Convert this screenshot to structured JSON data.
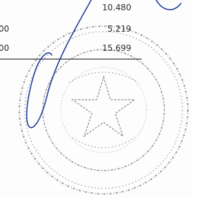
{
  "rows": [
    {
      "amount": "10.480"
    },
    {
      "left": "00",
      "amount": "5.219"
    },
    {
      "left": "00",
      "amount": "15.699"
    }
  ]
}
